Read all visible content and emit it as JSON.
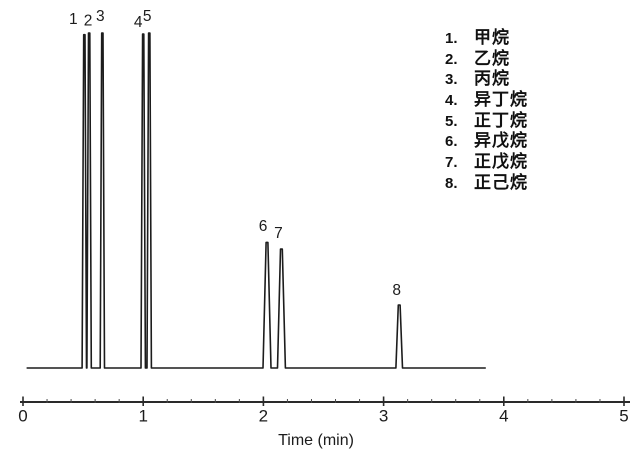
{
  "figure": {
    "background": "#ffffff",
    "colors": {
      "trace": "#1c1c1c",
      "axis": "#2a2a2a",
      "text": "#111111"
    }
  },
  "chart_data": {
    "type": "line",
    "subtype": "chromatogram",
    "title": "",
    "xlabel": "Time (min)",
    "ylabel": "",
    "xlim": [
      0,
      5
    ],
    "x_ticks": [
      0,
      1,
      2,
      3,
      4,
      5
    ],
    "minor_tick_interval_min": 0.2,
    "grid": false,
    "legend_position": "upper-right",
    "baseline_signal": 0,
    "trace_time_range_min": [
      0.03,
      3.85
    ],
    "peaks": [
      {
        "label": "1",
        "name": "甲烷",
        "time_min": 0.51,
        "height_frac": 0.995,
        "width_min": 0.036
      },
      {
        "label": "2",
        "name": "乙烷",
        "time_min": 0.55,
        "height_frac": 1.0,
        "width_min": 0.036
      },
      {
        "label": "3",
        "name": "丙烷",
        "time_min": 0.66,
        "height_frac": 1.0,
        "width_min": 0.036
      },
      {
        "label": "4",
        "name": "异丁烷",
        "time_min": 1.0,
        "height_frac": 0.997,
        "width_min": 0.036
      },
      {
        "label": "5",
        "name": "正丁烷",
        "time_min": 1.05,
        "height_frac": 1.0,
        "width_min": 0.036
      },
      {
        "label": "6",
        "name": "异戊烷",
        "time_min": 2.03,
        "height_frac": 0.375,
        "width_min": 0.066
      },
      {
        "label": "7",
        "name": "正戊烷",
        "time_min": 2.15,
        "height_frac": 0.355,
        "width_min": 0.066
      },
      {
        "label": "8",
        "name": "正己烷",
        "time_min": 3.13,
        "height_frac": 0.188,
        "width_min": 0.055
      }
    ],
    "legend_number_suffix": "."
  }
}
